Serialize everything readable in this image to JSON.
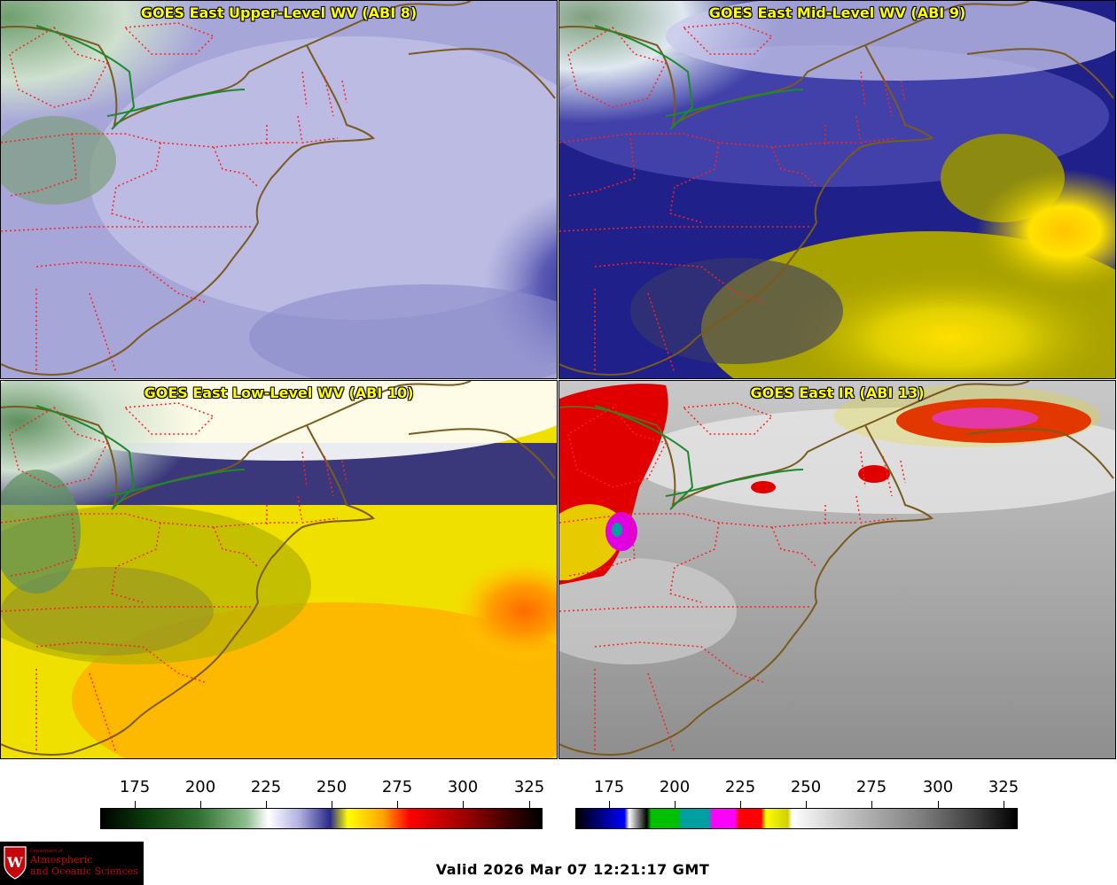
{
  "panels": [
    {
      "title": "GOES East Upper-Level WV (ABI 8)"
    },
    {
      "title": "GOES East Mid-Level WV (ABI 9)"
    },
    {
      "title": "GOES East Low-Level WV (ABI 10)"
    },
    {
      "title": "GOES East IR (ABI 13)"
    }
  ],
  "colorbars": [
    {
      "ticks": [
        "175",
        "200",
        "225",
        "250",
        "275",
        "300",
        "325"
      ]
    },
    {
      "ticks": [
        "175",
        "200",
        "225",
        "250",
        "275",
        "300",
        "325"
      ]
    }
  ],
  "logo": {
    "small": "Department of",
    "line1": "Atmospheric",
    "line2": "and Oceanic Sciences",
    "shield_letter": "W"
  },
  "valid_text": "Valid 2026 Mar 07 12:21:17 GMT",
  "colors": {
    "title_text": "#ffff00",
    "state_borders": "#ff2020",
    "coastline": "#7a5a1e",
    "border_line": "#1a8a2a"
  }
}
